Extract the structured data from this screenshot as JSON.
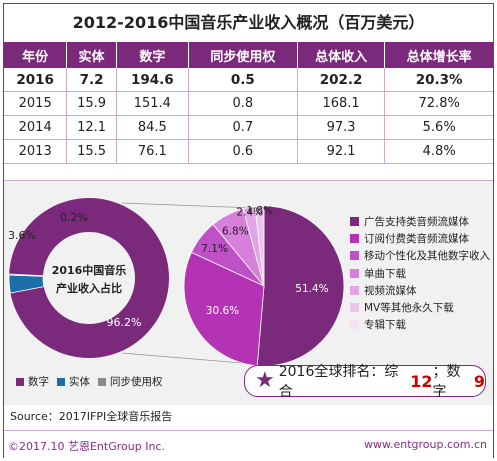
{
  "title": "2012-2016中国音乐产业收入概况（百万美元）",
  "table": {
    "headers": [
      "年份",
      "实体",
      "数字",
      "同步使用权",
      "总体收入",
      "总体增长率"
    ],
    "rows": [
      [
        "2016",
        "7.2",
        "194.6",
        "0.5",
        "202.2",
        "20.3%"
      ],
      [
        "2015",
        "15.9",
        "151.4",
        "0.8",
        "168.1",
        "72.8%"
      ],
      [
        "2014",
        "12.1",
        "84.5",
        "0.7",
        "97.3",
        "5.6%"
      ],
      [
        "2013",
        "15.5",
        "76.1",
        "0.6",
        "92.1",
        "4.8%"
      ]
    ]
  },
  "chart_data": [
    {
      "type": "pie",
      "variant": "donut",
      "center_label": "2016中国音乐\n产业收入占比",
      "categories": [
        "数字",
        "实体",
        "同步使用权"
      ],
      "values": [
        96.2,
        3.6,
        0.2
      ],
      "labels": [
        "96.2%",
        "3.6%",
        "0.2%"
      ],
      "colors": [
        "#7b2a7b",
        "#1a6fa8",
        "#8a8a8a"
      ]
    },
    {
      "type": "pie",
      "categories": [
        "广告支持类音频流媒体",
        "订阅付费类音频流媒体",
        "移动个性化及其他数字收入",
        "单曲下载",
        "视频流媒体",
        "MV等其他永久下载",
        "专辑下载"
      ],
      "values": [
        51.4,
        30.6,
        7.1,
        6.8,
        2.4,
        1.8,
        0.0
      ],
      "labels": [
        "51.4%",
        "30.6%",
        "7.1%",
        "6.8%",
        "2.4%",
        "1.8%",
        ""
      ],
      "colors": [
        "#7b2a7b",
        "#b432b4",
        "#c050c8",
        "#d680dc",
        "#e2a6e6",
        "#ecc5ef",
        "#f5e2f6"
      ],
      "legend_position": "right"
    }
  ],
  "legend_bottom": {
    "items": [
      "数字",
      "实体",
      "同步使用权"
    ],
    "colors": [
      "#7b2a7b",
      "#1a6fa8",
      "#8a8a8a"
    ]
  },
  "rank": {
    "star": "★",
    "prefix": "2016全球排名：综合",
    "overall": "12",
    "sep": "；数字",
    "digital": "9"
  },
  "source": "Source：2017IFPI全球音乐报告",
  "footer": {
    "left": "©2017.10  艺恩EntGroup Inc.",
    "right": "www.entgroup.com.cn"
  }
}
